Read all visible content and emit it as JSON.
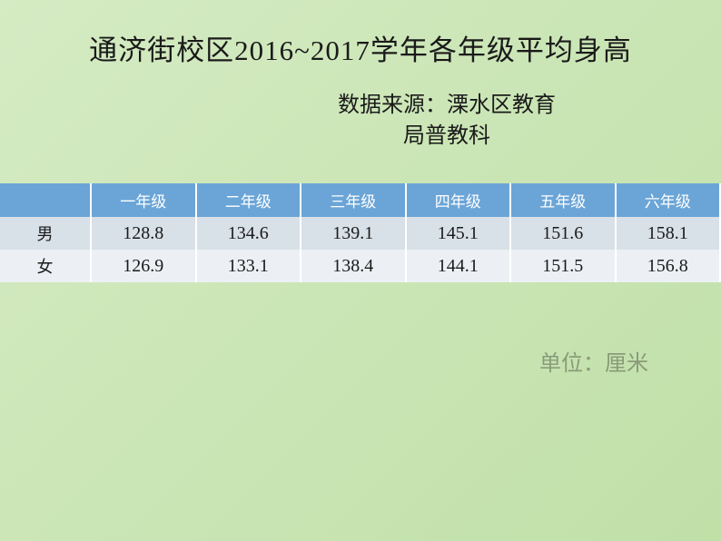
{
  "background": {
    "gradient_start": "#d5ebc3",
    "gradient_end": "#c0e0a8",
    "gradient_angle": "135deg"
  },
  "title": "通济街校区2016~2017学年各年级平均身高",
  "source_line1": "数据来源：溧水区教育",
  "source_line2": "局普教科",
  "table": {
    "header_bg": "#6ba5d7",
    "header_text_color": "#ffffff",
    "row_odd_bg": "#d8e0e8",
    "row_even_bg": "#ecf0f4",
    "border_color": "#ffffff",
    "columns": [
      "",
      "一年级",
      "二年级",
      "三年级",
      "四年级",
      "五年级",
      "六年级"
    ],
    "rows": [
      {
        "label": "男",
        "values": [
          "128.8",
          "134.6",
          "139.1",
          "145.1",
          "151.6",
          "158.1"
        ]
      },
      {
        "label": "女",
        "values": [
          "126.9",
          "133.1",
          "138.4",
          "144.1",
          "151.5",
          "156.8"
        ]
      }
    ]
  },
  "unit_label": "单位：厘米",
  "unit_color": "#8a9a7a"
}
